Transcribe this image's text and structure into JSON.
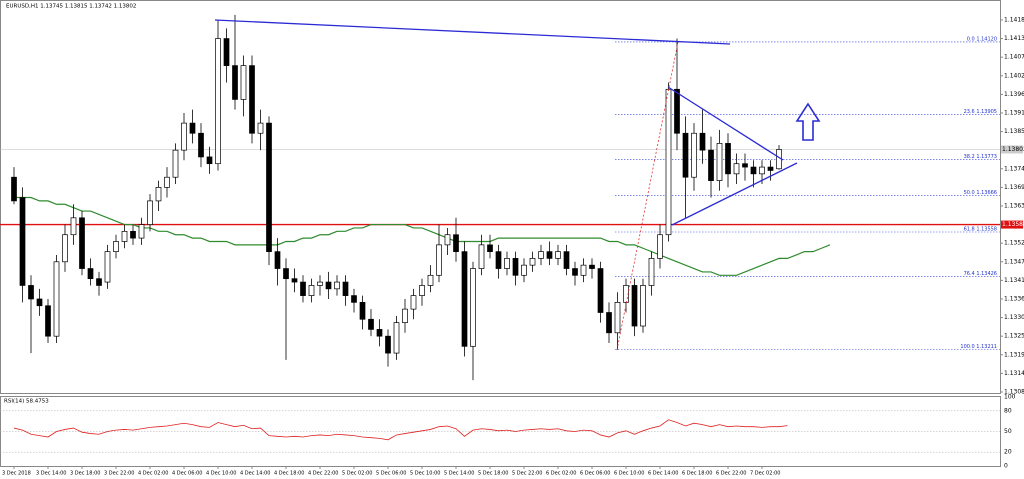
{
  "chart_data": {
    "type": "candlestick",
    "title": "EURUSD,H1  1.13745 1.13815 1.13742 1.13802",
    "categories": [
      "3 Dec 2018",
      null,
      null,
      null,
      "3 Dec 14:00",
      null,
      null,
      null,
      "3 Dec 18:00",
      null,
      null,
      null,
      "3 Dec 22:00",
      null,
      null,
      null,
      "4 Dec 02:00",
      null,
      null,
      null,
      "4 Dec 06:00",
      null,
      null,
      null,
      "4 Dec 10:00",
      null,
      null,
      null,
      "4 Dec 14:00",
      null,
      null,
      null,
      "4 Dec 18:00",
      null,
      null,
      null,
      "4 Dec 22:00",
      null,
      null,
      null,
      "5 Dec 02:00",
      null,
      null,
      null,
      "5 Dec 06:00",
      null,
      null,
      null,
      "5 Dec 10:00",
      null,
      null,
      null,
      "5 Dec 14:00",
      null,
      null,
      null,
      "5 Dec 18:00",
      null,
      null,
      null,
      "5 Dec 22:00",
      null,
      null,
      null,
      "6 Dec 02:00",
      null,
      null,
      null,
      "6 Dec 06:00",
      null,
      null,
      null,
      "6 Dec 10:00",
      null,
      null,
      null,
      "6 Dec 14:00",
      null,
      null,
      null,
      "6 Dec 18:00",
      null,
      null,
      null,
      "6 Dec 22:00",
      null,
      null,
      null,
      "7 Dec 02:00",
      null,
      null,
      null,
      null,
      null,
      null,
      null,
      null
    ],
    "ohlc": [
      [
        1.1372,
        1.1375,
        1.1364,
        1.1365
      ],
      [
        1.1366,
        1.1369,
        1.1335,
        1.134
      ],
      [
        1.134,
        1.1343,
        1.132,
        1.1336
      ],
      [
        1.1336,
        1.1339,
        1.1331,
        1.1334
      ],
      [
        1.1334,
        1.1336,
        1.1323,
        1.1325
      ],
      [
        1.1325,
        1.1349,
        1.1323,
        1.1347
      ],
      [
        1.1347,
        1.1358,
        1.1344,
        1.1355
      ],
      [
        1.1355,
        1.1364,
        1.1352,
        1.136
      ],
      [
        1.136,
        1.1362,
        1.1343,
        1.1345
      ],
      [
        1.1345,
        1.1348,
        1.134,
        1.1342
      ],
      [
        1.1342,
        1.1344,
        1.1337,
        1.134
      ],
      [
        1.1341,
        1.1352,
        1.1339,
        1.135
      ],
      [
        1.135,
        1.1355,
        1.1348,
        1.1353
      ],
      [
        1.1353,
        1.1358,
        1.1351,
        1.1356
      ],
      [
        1.1356,
        1.1358,
        1.1352,
        1.1354
      ],
      [
        1.1354,
        1.136,
        1.1352,
        1.1358
      ],
      [
        1.1358,
        1.1367,
        1.1356,
        1.1365
      ],
      [
        1.1365,
        1.1371,
        1.1362,
        1.1369
      ],
      [
        1.1369,
        1.1375,
        1.1366,
        1.1372
      ],
      [
        1.1372,
        1.1382,
        1.137,
        1.138
      ],
      [
        1.138,
        1.1391,
        1.1377,
        1.1388
      ],
      [
        1.1388,
        1.1392,
        1.1382,
        1.1385
      ],
      [
        1.1385,
        1.1388,
        1.1375,
        1.1378
      ],
      [
        1.1378,
        1.1381,
        1.1373,
        1.1376
      ],
      [
        1.1376,
        1.14185,
        1.1374,
        1.1413
      ],
      [
        1.1413,
        1.1416,
        1.14,
        1.1405
      ],
      [
        1.1405,
        1.142,
        1.1392,
        1.1395
      ],
      [
        1.1395,
        1.1408,
        1.139,
        1.1405
      ],
      [
        1.1405,
        1.1408,
        1.1382,
        1.1385
      ],
      [
        1.1385,
        1.1392,
        1.138,
        1.1388
      ],
      [
        1.1388,
        1.139,
        1.1346,
        1.135
      ],
      [
        1.135,
        1.1354,
        1.134,
        1.1345
      ],
      [
        1.1345,
        1.1348,
        1.1318,
        1.1342
      ],
      [
        1.1342,
        1.1345,
        1.1338,
        1.1341
      ],
      [
        1.1341,
        1.1343,
        1.1335,
        1.1337
      ],
      [
        1.1337,
        1.1342,
        1.1335,
        1.134
      ],
      [
        1.134,
        1.1343,
        1.1337,
        1.1341
      ],
      [
        1.1341,
        1.1344,
        1.1336,
        1.1339
      ],
      [
        1.1339,
        1.1343,
        1.1337,
        1.1341
      ],
      [
        1.1341,
        1.1343,
        1.1334,
        1.1337
      ],
      [
        1.1337,
        1.1339,
        1.1332,
        1.1335
      ],
      [
        1.1335,
        1.1337,
        1.1327,
        1.133
      ],
      [
        1.133,
        1.1333,
        1.1325,
        1.1327
      ],
      [
        1.1327,
        1.133,
        1.1322,
        1.1325
      ],
      [
        1.1325,
        1.1327,
        1.1316,
        1.132
      ],
      [
        1.132,
        1.1331,
        1.1318,
        1.1329
      ],
      [
        1.1329,
        1.1336,
        1.1326,
        1.1333
      ],
      [
        1.1333,
        1.1339,
        1.133,
        1.1337
      ],
      [
        1.1337,
        1.1342,
        1.1334,
        1.134
      ],
      [
        1.134,
        1.1346,
        1.1338,
        1.1343
      ],
      [
        1.1343,
        1.1358,
        1.1341,
        1.1352
      ],
      [
        1.1352,
        1.1357,
        1.1349,
        1.1355
      ],
      [
        1.1355,
        1.136,
        1.1347,
        1.135
      ],
      [
        1.135,
        1.1353,
        1.1319,
        1.1322
      ],
      [
        1.1322,
        1.1347,
        1.1312,
        1.1345
      ],
      [
        1.1345,
        1.1355,
        1.1343,
        1.1352
      ],
      [
        1.1352,
        1.1355,
        1.1348,
        1.135
      ],
      [
        1.135,
        1.1352,
        1.1342,
        1.1345
      ],
      [
        1.1345,
        1.135,
        1.1343,
        1.1348
      ],
      [
        1.1348,
        1.135,
        1.134,
        1.1343
      ],
      [
        1.1343,
        1.1348,
        1.1341,
        1.1346
      ],
      [
        1.1346,
        1.135,
        1.1344,
        1.1348
      ],
      [
        1.1348,
        1.1352,
        1.1346,
        1.135
      ],
      [
        1.135,
        1.1353,
        1.1346,
        1.1348
      ],
      [
        1.1348,
        1.1352,
        1.1346,
        1.135
      ],
      [
        1.135,
        1.1352,
        1.1343,
        1.1345
      ],
      [
        1.1345,
        1.1347,
        1.134,
        1.1343
      ],
      [
        1.1343,
        1.1348,
        1.1341,
        1.1346
      ],
      [
        1.1346,
        1.1348,
        1.1342,
        1.1345
      ],
      [
        1.1345,
        1.1347,
        1.1329,
        1.1332
      ],
      [
        1.1332,
        1.1335,
        1.1323,
        1.1326
      ],
      [
        1.1326,
        1.1338,
        1.1321,
        1.1335
      ],
      [
        1.1335,
        1.1342,
        1.1332,
        1.134
      ],
      [
        1.134,
        1.1342,
        1.1325,
        1.1328
      ],
      [
        1.1328,
        1.1342,
        1.1326,
        1.134
      ],
      [
        1.134,
        1.135,
        1.1337,
        1.1348
      ],
      [
        1.1348,
        1.1358,
        1.1345,
        1.1355
      ],
      [
        1.1355,
        1.14,
        1.1353,
        1.1398
      ],
      [
        1.1398,
        1.1413,
        1.138,
        1.1385
      ],
      [
        1.1385,
        1.139,
        1.136,
        1.1372
      ],
      [
        1.1372,
        1.1388,
        1.1368,
        1.1385
      ],
      [
        1.1385,
        1.1392,
        1.1376,
        1.138
      ],
      [
        1.138,
        1.1384,
        1.1366,
        1.1371
      ],
      [
        1.1371,
        1.1386,
        1.1368,
        1.1382
      ],
      [
        1.1382,
        1.1385,
        1.1369,
        1.1373
      ],
      [
        1.1373,
        1.1379,
        1.137,
        1.1376
      ],
      [
        1.1376,
        1.1379,
        1.1371,
        1.1375
      ],
      [
        1.1375,
        1.1377,
        1.1369,
        1.1373
      ],
      [
        1.1373,
        1.1377,
        1.137,
        1.1375
      ],
      [
        1.1375,
        1.1377,
        1.1371,
        1.1374
      ],
      [
        1.13745,
        1.13815,
        1.13742,
        1.13802
      ]
    ],
    "up_color": "#ffffff",
    "down_color": "#000000",
    "ma": {
      "color": "#2e8b2e",
      "values": [
        1.1366,
        1.1366,
        1.1366,
        1.1365,
        1.1365,
        1.1364,
        1.1364,
        1.1363,
        1.1362,
        1.1362,
        1.1361,
        1.136,
        1.1359,
        1.1358,
        1.1358,
        1.1357,
        1.1357,
        1.1356,
        1.1356,
        1.1355,
        1.1355,
        1.1354,
        1.1354,
        1.1353,
        1.1353,
        1.1353,
        1.1352,
        1.1352,
        1.1352,
        1.1352,
        1.1352,
        1.1352,
        1.1353,
        1.1353,
        1.1354,
        1.1354,
        1.1355,
        1.1355,
        1.1356,
        1.1356,
        1.1357,
        1.1357,
        1.1358,
        1.1358,
        1.1358,
        1.1358,
        1.1358,
        1.1357,
        1.1357,
        1.1356,
        1.1355,
        1.1354,
        1.1353,
        1.1353,
        1.1353,
        1.1353,
        1.1353,
        1.1354,
        1.1354,
        1.1354,
        1.1354,
        1.1354,
        1.1354,
        1.1354,
        1.1354,
        1.1354,
        1.1354,
        1.1354,
        1.1354,
        1.1354,
        1.1353,
        1.1353,
        1.1352,
        1.1352,
        1.1351,
        1.135,
        1.1349,
        1.1348,
        1.1347,
        1.1346,
        1.1345,
        1.1344,
        1.1344,
        1.1343,
        1.1343,
        1.1343,
        1.1344,
        1.1345,
        1.1346,
        1.1347,
        1.1348,
        1.1348,
        1.1349,
        1.135,
        1.135,
        1.1351,
        1.1352
      ]
    },
    "ylim": [
      1.13082,
      1.14244
    ],
    "yticks": [
      1.14185,
      {
        "value": 1.1413,
        "label": "1.14130"
      },
      1.14075,
      {
        "value": 1.1402,
        "label": "1.14020"
      },
      1.13965,
      {
        "value": 1.1391,
        "label": "1.13910"
      },
      1.13855,
      1.13745,
      {
        "value": 1.1369,
        "label": "1.13690"
      },
      1.13635,
      1.13525,
      {
        "value": 1.1347,
        "label": "1.13470"
      },
      1.13415,
      {
        "value": 1.1336,
        "label": "1.13360"
      },
      1.13305,
      {
        "value": 1.1325,
        "label": "1.13250"
      },
      1.13195,
      {
        "value": 1.1314,
        "label": "1.13140"
      },
      1.13085
    ],
    "support_line": {
      "value": 1.1358,
      "label": "1.13580",
      "color": "#e01010"
    },
    "current_price": {
      "value": 1.13802,
      "label": "1.13802"
    },
    "fib_levels": [
      {
        "value": 1.1412,
        "label": "0.0 1.14120"
      },
      {
        "value": 1.13905,
        "label": "23.6 1.13905"
      },
      {
        "value": 1.13773,
        "label": "38.2 1.13773"
      },
      {
        "value": 1.13666,
        "label": "50.0 1.13666"
      },
      {
        "value": 1.13558,
        "label": "61.8 1.13558"
      },
      {
        "value": 1.13426,
        "label": "76.4 1.13426"
      },
      {
        "value": 1.13211,
        "label": "100.0 1.13211"
      }
    ],
    "rsi": {
      "label": "RSI(14) 58.4753",
      "color": "#e02020",
      "ylim": [
        0,
        100
      ],
      "yticks": [
        100,
        80,
        50,
        20,
        0
      ],
      "values": [
        55,
        52,
        46,
        44,
        42,
        50,
        53,
        55,
        49,
        47,
        46,
        50,
        52,
        53,
        52,
        54,
        56,
        57,
        58,
        60,
        62,
        60,
        57,
        56,
        63,
        60,
        57,
        59,
        54,
        55,
        44,
        43,
        42,
        43,
        42,
        44,
        45,
        44,
        46,
        45,
        44,
        42,
        41,
        40,
        38,
        45,
        47,
        49,
        51,
        53,
        57,
        58,
        54,
        43,
        52,
        54,
        53,
        51,
        52,
        50,
        52,
        53,
        54,
        53,
        54,
        51,
        50,
        52,
        51,
        45,
        42,
        48,
        51,
        46,
        51,
        55,
        58,
        67,
        63,
        58,
        62,
        60,
        57,
        60,
        57,
        58,
        57,
        57,
        56,
        57,
        57,
        58.4753
      ]
    }
  }
}
